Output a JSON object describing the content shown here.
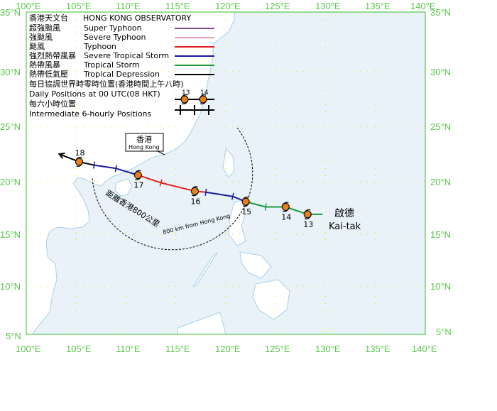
{
  "legend": {
    "org_zh": "香港天文台",
    "org_en": "HONG KONG OBSERVATORY",
    "items": [
      {
        "zh": "超強颱風",
        "en": "Super Typhoon",
        "color": "#8a4a8a"
      },
      {
        "zh": "強颱風",
        "en": "Severe Typhoon",
        "color": "#e8a0b0"
      },
      {
        "zh": "颱風",
        "en": "Typhoon",
        "color": "#e02020"
      },
      {
        "zh": "強烈熱帶風暴",
        "en": "Severe Tropical Storm",
        "color": "#1a1aa0"
      },
      {
        "zh": "熱帶風暴",
        "en": "Tropical Storm",
        "color": "#1a9a3a"
      },
      {
        "zh": "熱帶低氣壓",
        "en": "Tropical Depression",
        "color": "#000000"
      }
    ],
    "daily_zh": "每日協調世界時零時位置(香港時間上午八時)",
    "daily_en": "Daily Positions at 00 UTC(08 HKT)",
    "daily_nums": [
      "13",
      "14"
    ],
    "six_zh": "每六小時位置",
    "six_en": "Intermediate 6-hourly Positions"
  },
  "axes": {
    "lon_top": [
      "100°E",
      "105°E",
      "110°E",
      "115°E",
      "120°E",
      "125°E",
      "130°E",
      "135°E",
      "140°E"
    ],
    "lon_bottom": [
      "100°E",
      "105°E",
      "110°E",
      "115°E",
      "120°E",
      "125°E",
      "130°E",
      "135°E",
      "140°E"
    ],
    "lat_left": [
      "35°N",
      "30°N",
      "25°N",
      "20°N",
      "15°N",
      "10°N",
      "5°N"
    ],
    "lat_right": [
      "35°N",
      "30°N",
      "25°N",
      "20°N",
      "15°N",
      "10°N",
      "5°N"
    ]
  },
  "hong_kong": {
    "zh": "香港",
    "en": "Hong Kong"
  },
  "circle_label_zh": "距離香港800公里",
  "circle_label_en": "800 km from Hong Kong",
  "storm": {
    "zh": "啟德",
    "en": "Kai-tak"
  },
  "colors": {
    "sea": "#e8f2f8",
    "land": "#ffffff",
    "grid": "#e8e000",
    "frame": "#59c64a",
    "coast": "#a8d0e8"
  },
  "track": [
    {
      "lon": 129.7,
      "lat": 16.9,
      "cat": "TD"
    },
    {
      "lon": 128.2,
      "lat": 16.9,
      "cat": "TS",
      "day": "13"
    },
    {
      "lon": 126.0,
      "lat": 17.6,
      "cat": "TS",
      "day": "14"
    },
    {
      "lon": 124.0,
      "lat": 17.6,
      "cat": "TS"
    },
    {
      "lon": 122.0,
      "lat": 18.1,
      "cat": "TS",
      "day": "15"
    },
    {
      "lon": 120.7,
      "lat": 18.6,
      "cat": "STS"
    },
    {
      "lon": 118.0,
      "lat": 19.0,
      "cat": "STS"
    },
    {
      "lon": 116.9,
      "lat": 19.1,
      "cat": "T",
      "day": "16"
    },
    {
      "lon": 113.5,
      "lat": 19.9,
      "cat": "T"
    },
    {
      "lon": 111.2,
      "lat": 20.6,
      "cat": "T",
      "day": "17"
    },
    {
      "lon": 109.0,
      "lat": 21.2,
      "cat": "STS"
    },
    {
      "lon": 106.8,
      "lat": 21.5,
      "cat": "STS"
    },
    {
      "lon": 105.3,
      "lat": 21.8,
      "cat": "TD",
      "day": "18"
    },
    {
      "lon": 103.3,
      "lat": 22.5,
      "cat": "TD"
    }
  ]
}
